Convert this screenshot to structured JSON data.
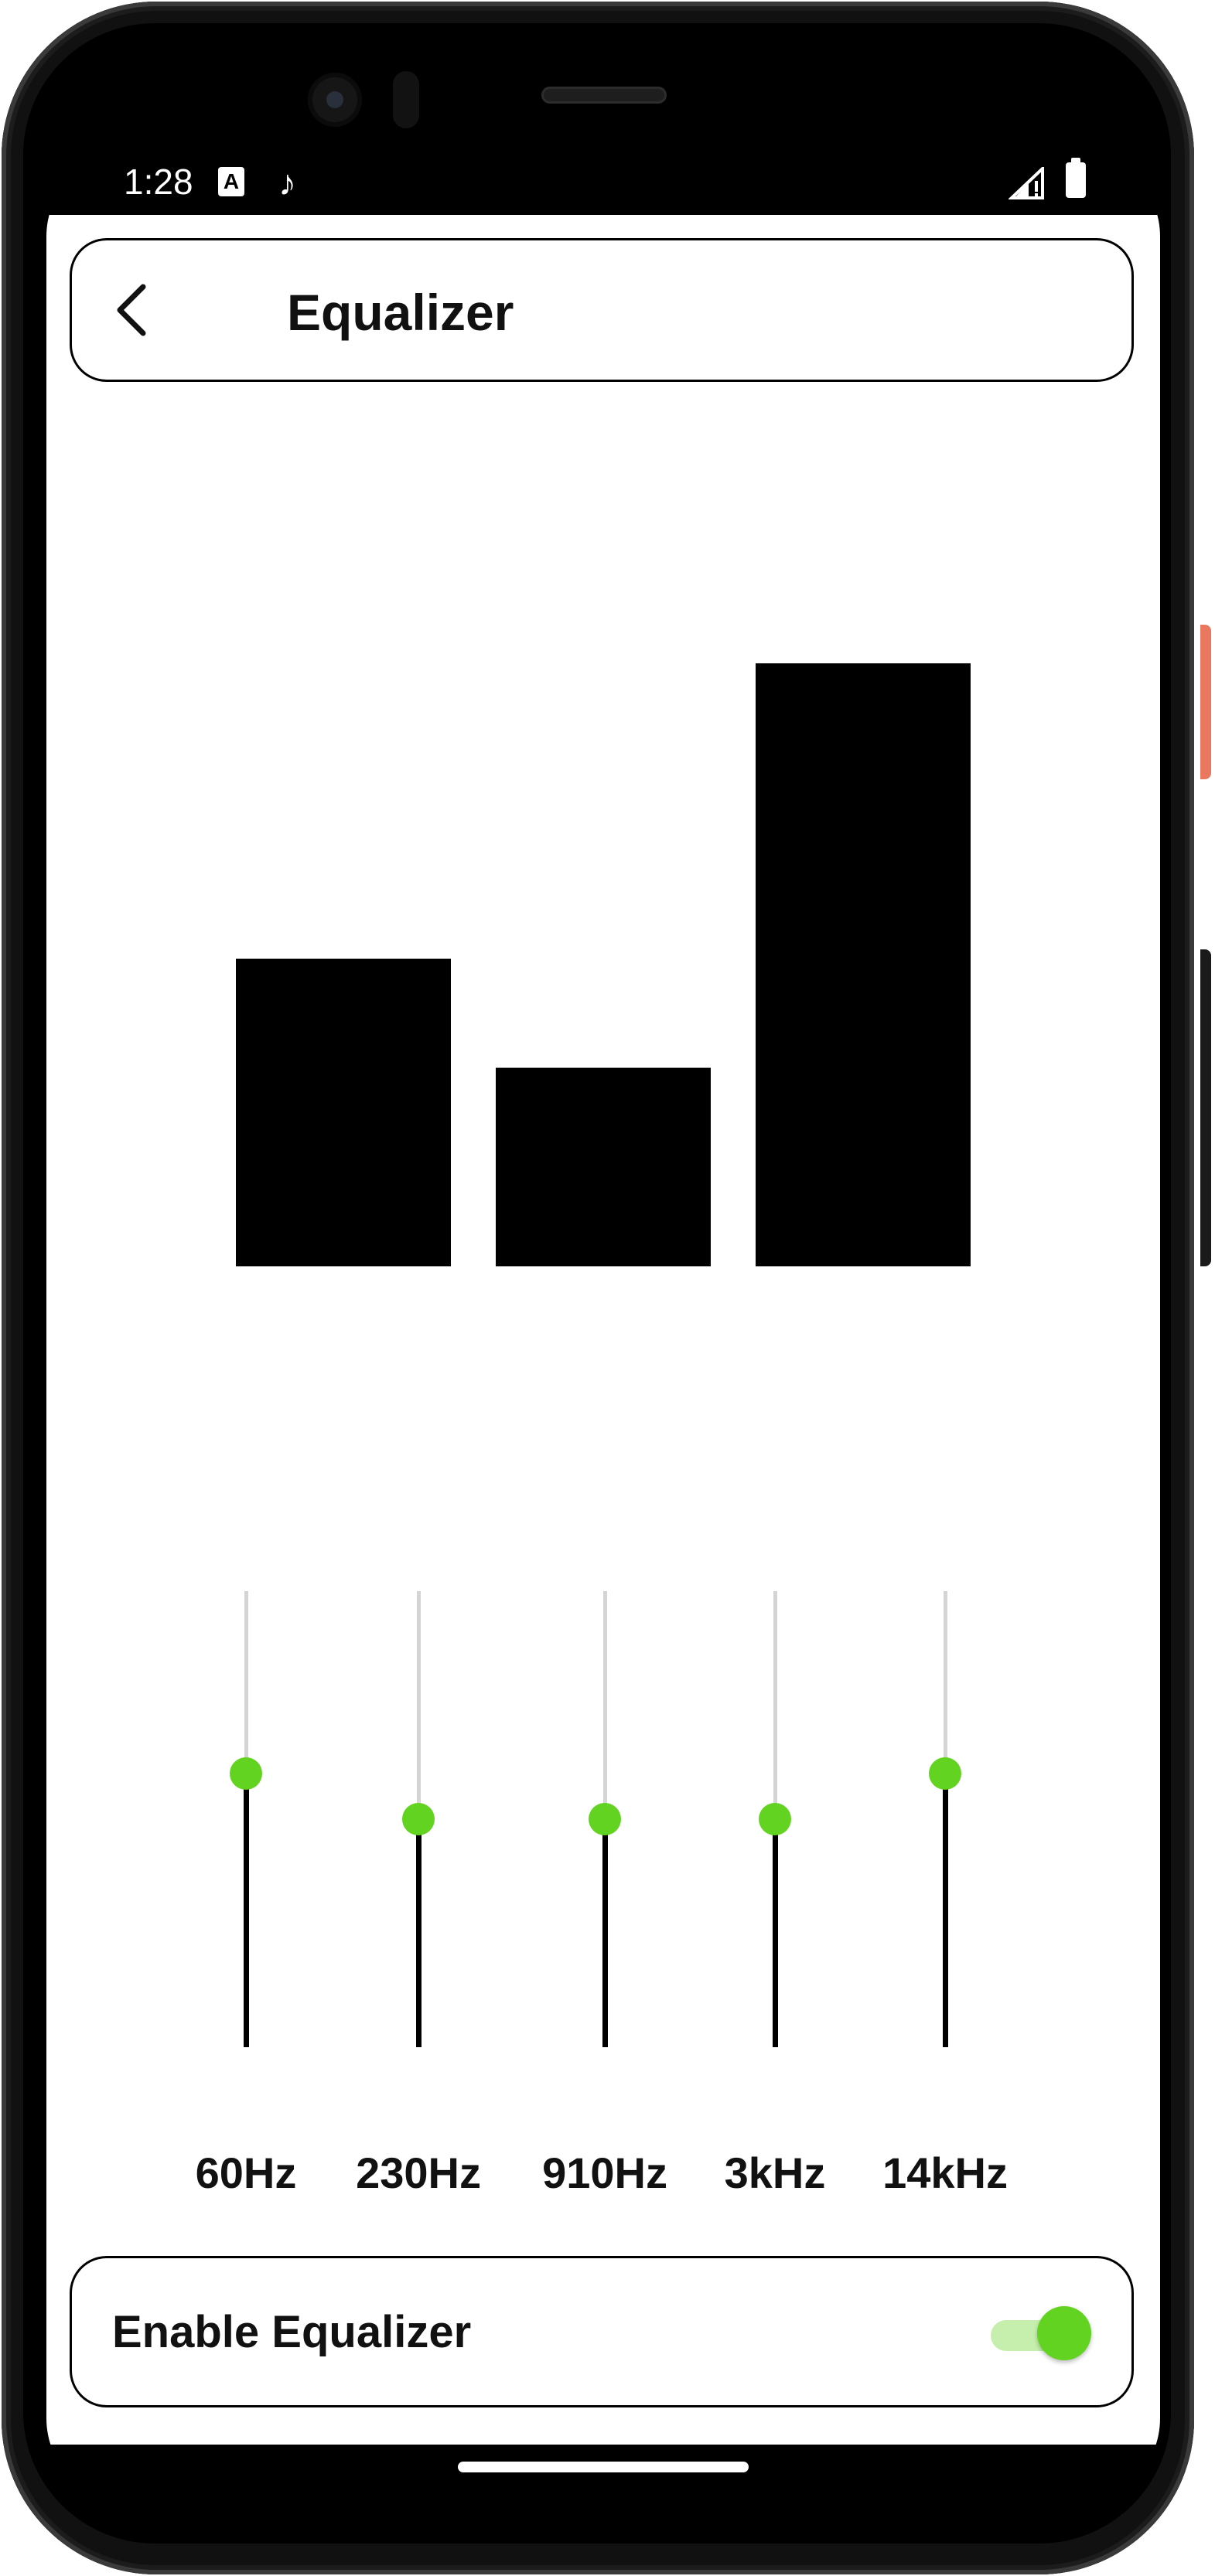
{
  "status_bar": {
    "time": "1:28",
    "text_icon": "A",
    "music_icon": "♪"
  },
  "app_bar": {
    "title": "Equalizer",
    "back_icon": "chevron-left-icon"
  },
  "equalizer_bars": {
    "values": [
      0.51,
      0.33,
      1.0
    ],
    "color": "#000000"
  },
  "bands": [
    {
      "label": "60Hz",
      "level": 0.6
    },
    {
      "label": "230Hz",
      "level": 0.5
    },
    {
      "label": "910Hz",
      "level": 0.5
    },
    {
      "label": "3kHz",
      "level": 0.5
    },
    {
      "label": "14kHz",
      "level": 0.6
    }
  ],
  "enable_equalizer": {
    "label": "Enable Equalizer",
    "enabled": true
  },
  "colors": {
    "accent": "#62d321",
    "accent_light": "#c6efad",
    "track_inactive": "#d4d4d4",
    "track_active": "#000000",
    "frame_button": "#e9785f"
  }
}
